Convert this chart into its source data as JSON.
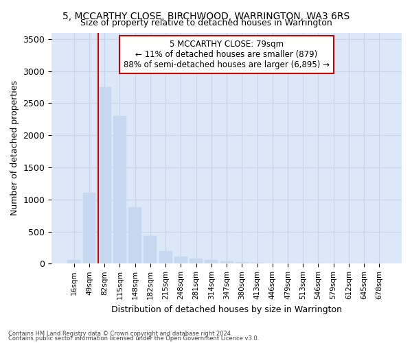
{
  "title": "5, MCCARTHY CLOSE, BIRCHWOOD, WARRINGTON, WA3 6RS",
  "subtitle": "Size of property relative to detached houses in Warrington",
  "xlabel": "Distribution of detached houses by size in Warrington",
  "ylabel": "Number of detached properties",
  "annotation_line1": "5 MCCARTHY CLOSE: 79sqm",
  "annotation_line2": "← 11% of detached houses are smaller (879)",
  "annotation_line3": "88% of semi-detached houses are larger (6,895) →",
  "bar_color": "#c5d8f0",
  "bar_edge_color": "#c5d8f0",
  "vline_color": "#cc0000",
  "annotation_box_edgecolor": "#cc0000",
  "annotation_box_facecolor": "#ffffff",
  "grid_color": "#c8d4e8",
  "bg_color": "#dce8f8",
  "footnote1": "Contains HM Land Registry data © Crown copyright and database right 2024.",
  "footnote2": "Contains public sector information licensed under the Open Government Licence v3.0.",
  "categories": [
    "16sqm",
    "49sqm",
    "82sqm",
    "115sqm",
    "148sqm",
    "182sqm",
    "215sqm",
    "248sqm",
    "281sqm",
    "314sqm",
    "347sqm",
    "380sqm",
    "413sqm",
    "446sqm",
    "479sqm",
    "513sqm",
    "546sqm",
    "579sqm",
    "612sqm",
    "645sqm",
    "678sqm"
  ],
  "values": [
    55,
    1100,
    2750,
    2300,
    880,
    430,
    200,
    110,
    75,
    55,
    35,
    22,
    15,
    8,
    5,
    4,
    3,
    2,
    1,
    1,
    0
  ],
  "ylim": [
    0,
    3600
  ],
  "vline_x_index": 1.5
}
